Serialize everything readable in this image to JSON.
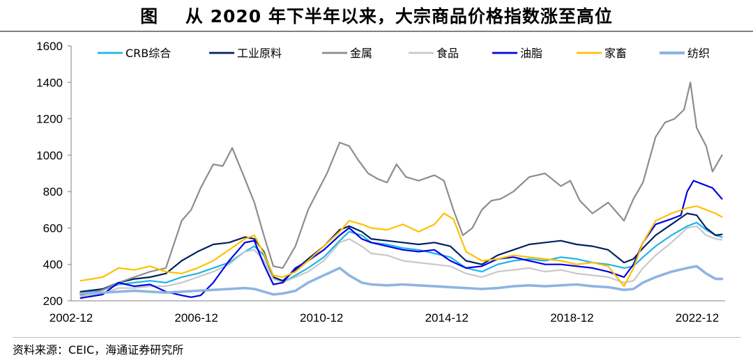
{
  "title": "图    从 2020 年下半年以来，大宗商品价格指数涨至高位",
  "source": "资料来源：CEIC，海通证券研究所",
  "chart_data": {
    "type": "line",
    "x_ticks": [
      "2002-12",
      "2006-12",
      "2010-12",
      "2014-12",
      "2018-12",
      "2022-12"
    ],
    "y_ticks": [
      200,
      400,
      600,
      800,
      1000,
      1200,
      1400,
      1600
    ],
    "ylim": [
      200,
      1600
    ],
    "xlim": [
      2002.5,
      2023.2
    ],
    "grid": false,
    "legend_position": "top",
    "series": [
      {
        "name": "CRB综合",
        "color": "#1fb3e8",
        "width": 2.2,
        "x": [
          2002.8,
          2003.5,
          2004,
          2004.5,
          2005,
          2005.5,
          2006,
          2006.5,
          2007,
          2007.5,
          2008,
          2008.3,
          2008.6,
          2008.9,
          2009.2,
          2009.6,
          2010,
          2010.5,
          2011,
          2011.3,
          2011.7,
          2012,
          2012.5,
          2013,
          2013.5,
          2014,
          2014.5,
          2015,
          2015.5,
          2016,
          2016.5,
          2017,
          2017.5,
          2018,
          2018.5,
          2019,
          2019.5,
          2020,
          2020.3,
          2020.6,
          2021,
          2021.5,
          2022,
          2022.3,
          2022.6,
          2022.9,
          2023.1
        ],
        "y": [
          240,
          260,
          290,
          300,
          310,
          300,
          330,
          350,
          380,
          410,
          470,
          500,
          450,
          330,
          300,
          340,
          380,
          440,
          530,
          580,
          560,
          520,
          510,
          490,
          480,
          460,
          440,
          380,
          360,
          400,
          420,
          430,
          420,
          440,
          430,
          410,
          400,
          380,
          390,
          440,
          500,
          560,
          610,
          630,
          590,
          560,
          550
        ]
      },
      {
        "name": "工业原料",
        "color": "#002060",
        "width": 2.2,
        "x": [
          2002.8,
          2003.5,
          2004,
          2004.5,
          2005,
          2005.5,
          2006,
          2006.5,
          2007,
          2007.5,
          2008,
          2008.3,
          2008.6,
          2008.9,
          2009.2,
          2009.6,
          2010,
          2010.5,
          2011,
          2011.3,
          2011.7,
          2012,
          2012.5,
          2013,
          2013.5,
          2014,
          2014.5,
          2015,
          2015.5,
          2016,
          2016.5,
          2017,
          2017.5,
          2018,
          2018.5,
          2019,
          2019.5,
          2020,
          2020.3,
          2020.6,
          2021,
          2021.5,
          2022,
          2022.3,
          2022.6,
          2022.9,
          2023.1
        ],
        "y": [
          250,
          265,
          300,
          320,
          330,
          350,
          420,
          470,
          510,
          520,
          550,
          540,
          470,
          330,
          310,
          370,
          430,
          500,
          590,
          610,
          580,
          540,
          530,
          520,
          510,
          520,
          500,
          420,
          400,
          450,
          480,
          510,
          520,
          530,
          510,
          500,
          480,
          410,
          430,
          490,
          560,
          620,
          680,
          670,
          600,
          560,
          565
        ]
      },
      {
        "name": "金属",
        "color": "#8c8c8c",
        "width": 2.2,
        "x": [
          2002.8,
          2003.5,
          2004,
          2004.5,
          2005,
          2005.5,
          2006,
          2006.3,
          2006.6,
          2007,
          2007.3,
          2007.6,
          2008,
          2008.3,
          2008.6,
          2008.9,
          2009.2,
          2009.6,
          2010,
          2010.3,
          2010.6,
          2011,
          2011.3,
          2011.6,
          2011.9,
          2012.2,
          2012.5,
          2012.8,
          2013.1,
          2013.5,
          2014,
          2014.3,
          2014.6,
          2014.9,
          2015.2,
          2015.5,
          2015.8,
          2016.1,
          2016.5,
          2017,
          2017.5,
          2018,
          2018.3,
          2018.6,
          2019,
          2019.5,
          2020,
          2020.3,
          2020.6,
          2021,
          2021.3,
          2021.6,
          2021.9,
          2022.1,
          2022.3,
          2022.6,
          2022.8,
          2023.1
        ],
        "y": [
          230,
          260,
          300,
          330,
          360,
          380,
          640,
          700,
          820,
          950,
          940,
          1040,
          870,
          740,
          560,
          390,
          380,
          500,
          700,
          800,
          900,
          1070,
          1050,
          970,
          900,
          870,
          850,
          950,
          880,
          860,
          890,
          860,
          700,
          560,
          600,
          700,
          750,
          760,
          800,
          880,
          900,
          830,
          860,
          750,
          680,
          740,
          640,
          760,
          850,
          1100,
          1180,
          1200,
          1250,
          1400,
          1150,
          1050,
          910,
          1000
        ]
      },
      {
        "name": "食品",
        "color": "#c8c8c8",
        "width": 2.2,
        "x": [
          2002.8,
          2003.5,
          2004,
          2004.5,
          2005,
          2005.5,
          2006,
          2006.5,
          2007,
          2007.5,
          2008,
          2008.3,
          2008.6,
          2008.9,
          2009.2,
          2009.6,
          2010,
          2010.5,
          2011,
          2011.3,
          2011.7,
          2012,
          2012.5,
          2013,
          2013.5,
          2014,
          2014.5,
          2015,
          2015.5,
          2016,
          2016.5,
          2017,
          2017.5,
          2018,
          2018.5,
          2019,
          2019.5,
          2020,
          2020.3,
          2020.6,
          2021,
          2021.5,
          2022,
          2022.3,
          2022.6,
          2022.9,
          2023.1
        ],
        "y": [
          225,
          240,
          270,
          270,
          280,
          280,
          300,
          330,
          360,
          400,
          470,
          480,
          420,
          320,
          300,
          330,
          360,
          420,
          520,
          540,
          500,
          460,
          450,
          420,
          410,
          400,
          390,
          350,
          330,
          360,
          370,
          380,
          360,
          370,
          350,
          340,
          330,
          300,
          310,
          380,
          450,
          520,
          600,
          610,
          560,
          540,
          535
        ]
      },
      {
        "name": "油脂",
        "color": "#0000e6",
        "width": 2.2,
        "x": [
          2002.8,
          2003.5,
          2004,
          2004.5,
          2005,
          2005.5,
          2006,
          2006.3,
          2006.6,
          2007,
          2007.5,
          2008,
          2008.3,
          2008.6,
          2008.9,
          2009.2,
          2009.6,
          2010,
          2010.5,
          2011,
          2011.3,
          2011.7,
          2012,
          2012.5,
          2013,
          2013.5,
          2014,
          2014.5,
          2015,
          2015.5,
          2016,
          2016.5,
          2017,
          2017.5,
          2018,
          2018.5,
          2019,
          2019.5,
          2020,
          2020.3,
          2020.6,
          2021,
          2021.5,
          2021.8,
          2022,
          2022.2,
          2022.5,
          2022.8,
          2023.1
        ],
        "y": [
          215,
          235,
          300,
          280,
          290,
          250,
          230,
          220,
          230,
          300,
          420,
          520,
          530,
          400,
          290,
          300,
          380,
          420,
          480,
          560,
          600,
          540,
          520,
          500,
          480,
          470,
          480,
          420,
          380,
          390,
          430,
          440,
          420,
          400,
          400,
          390,
          380,
          360,
          330,
          400,
          520,
          620,
          650,
          670,
          800,
          860,
          840,
          820,
          760
        ]
      },
      {
        "name": "家畜",
        "color": "#ffc000",
        "width": 2.2,
        "x": [
          2002.8,
          2003.5,
          2004,
          2004.5,
          2005,
          2005.5,
          2006,
          2006.5,
          2007,
          2007.5,
          2008,
          2008.3,
          2008.6,
          2008.9,
          2009.2,
          2009.6,
          2010,
          2010.5,
          2011,
          2011.3,
          2011.7,
          2012,
          2012.5,
          2013,
          2013.5,
          2014,
          2014.3,
          2014.6,
          2015,
          2015.5,
          2016,
          2016.5,
          2017,
          2017.5,
          2018,
          2018.5,
          2019,
          2019.5,
          2020,
          2020.3,
          2020.6,
          2021,
          2021.5,
          2022,
          2022.3,
          2022.6,
          2022.9,
          2023.1
        ],
        "y": [
          310,
          330,
          380,
          370,
          390,
          360,
          350,
          380,
          420,
          480,
          540,
          560,
          460,
          340,
          330,
          360,
          420,
          500,
          580,
          640,
          620,
          600,
          590,
          620,
          580,
          620,
          680,
          650,
          470,
          420,
          430,
          450,
          440,
          430,
          420,
          400,
          410,
          390,
          280,
          380,
          520,
          640,
          680,
          710,
          720,
          700,
          680,
          660
        ]
      },
      {
        "name": "纺织",
        "color": "#8eb4e3",
        "width": 3.6,
        "x": [
          2002.8,
          2003.5,
          2004,
          2004.5,
          2005,
          2005.5,
          2006,
          2006.5,
          2007,
          2007.5,
          2008,
          2008.3,
          2008.6,
          2008.9,
          2009.2,
          2009.6,
          2010,
          2010.5,
          2011,
          2011.3,
          2011.7,
          2012,
          2012.5,
          2013,
          2013.5,
          2014,
          2014.5,
          2015,
          2015.5,
          2016,
          2016.5,
          2017,
          2017.5,
          2018,
          2018.5,
          2019,
          2019.5,
          2020,
          2020.3,
          2020.6,
          2021,
          2021.5,
          2022,
          2022.3,
          2022.6,
          2022.9,
          2023.1
        ],
        "y": [
          240,
          245,
          250,
          255,
          250,
          245,
          250,
          255,
          260,
          265,
          270,
          265,
          250,
          235,
          240,
          255,
          300,
          340,
          380,
          340,
          300,
          290,
          285,
          290,
          285,
          280,
          275,
          270,
          265,
          270,
          280,
          285,
          280,
          285,
          290,
          280,
          275,
          260,
          265,
          300,
          330,
          360,
          380,
          390,
          350,
          320,
          320
        ]
      }
    ]
  }
}
